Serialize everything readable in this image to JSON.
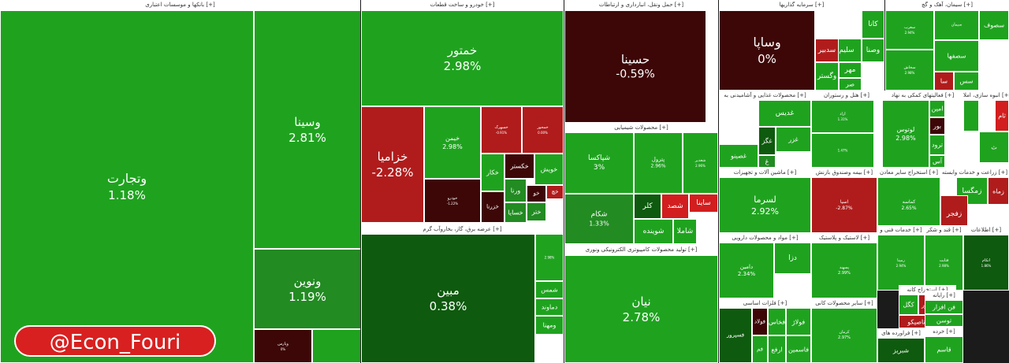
{
  "watermark": "@Econ_Fouri",
  "colors": {
    "up_strong": "#1fa31f",
    "up_mid": "#228b22",
    "up_dark": "#0e5a0e",
    "neutral_dark": "#3d0707",
    "down_mid": "#b01c1c",
    "down_strong": "#d21e1e",
    "background": "#ffffff"
  },
  "chart_data": {
    "type": "heatmap",
    "title": "",
    "sectors": [
      {
        "header": "بانکها و موسسات اعتباری [+]",
        "tiles": [
          {
            "name": "وتجارت",
            "value": "1.18%"
          },
          {
            "name": "وسینا",
            "value": "2.81%"
          },
          {
            "name": "ونوین",
            "value": "1.19%"
          },
          {
            "name": "وپارس",
            "value": "0%"
          },
          {
            "name": "",
            "value": ""
          }
        ]
      },
      {
        "header": "خودرو و ساخت قطعات [+]",
        "tiles": [
          {
            "name": "خمتور",
            "value": "2.98%"
          },
          {
            "name": "خزامیا",
            "value": "-2.28%"
          },
          {
            "name": "خیمن",
            "value": "2.98%"
          },
          {
            "name": "خسهرک",
            "value": "-0.91%"
          },
          {
            "name": "خمحور",
            "value": "0.00%"
          },
          {
            "name": "خودرو",
            "value": "-1.22%"
          },
          {
            "name": "خکار",
            "value": ""
          },
          {
            "name": "خکستر",
            "value": ""
          },
          {
            "name": "خویش",
            "value": ""
          },
          {
            "name": "خزرنا",
            "value": ""
          },
          {
            "name": "ورنا",
            "value": ""
          },
          {
            "name": "خو",
            "value": ""
          },
          {
            "name": "خچ",
            "value": ""
          },
          {
            "name": "ختر",
            "value": ""
          },
          {
            "name": "خسایا",
            "value": ""
          }
        ]
      },
      {
        "header": "عرضه برق، گاز، بخاروآب گرم [+]",
        "tiles": [
          {
            "name": "مبین",
            "value": "0.38%"
          },
          {
            "name": "",
            "value": "2.98%"
          },
          {
            "name": "شمس",
            "value": ""
          },
          {
            "name": "دماوند",
            "value": ""
          },
          {
            "name": "ومهنا",
            "value": ""
          }
        ]
      },
      {
        "header": "حمل ونقل، انبارداری و ارتباطات [+]",
        "tiles": [
          {
            "name": "حسینا",
            "value": "-0.59%"
          }
        ]
      },
      {
        "header": "محصولات شیمیایی [+]",
        "tiles": [
          {
            "name": "شپاکسا",
            "value": "3%"
          },
          {
            "name": "شکام",
            "value": "1.33%"
          },
          {
            "name": "پترول",
            "value": "2.96%"
          },
          {
            "name": "شغدیر",
            "value": "2.96%"
          },
          {
            "name": "کلر",
            "value": ""
          },
          {
            "name": "شصد",
            "value": ""
          },
          {
            "name": "شوینده",
            "value": ""
          },
          {
            "name": "شاملا",
            "value": ""
          },
          {
            "name": "ساینا",
            "value": ""
          }
        ]
      },
      {
        "header": "تولید محصولات کامپیوتری الکترونیکی ونوری [+]",
        "tiles": [
          {
            "name": "نیان",
            "value": "2.78%"
          }
        ]
      },
      {
        "header": "سرمایه گذاریها [+]",
        "tiles": [
          {
            "name": "وساپا",
            "value": "0%"
          },
          {
            "name": "کانا",
            "value": ""
          },
          {
            "name": "وصنا",
            "value": ""
          },
          {
            "name": "سلیم",
            "value": ""
          },
          {
            "name": "سدبیر",
            "value": ""
          },
          {
            "name": "مهر",
            "value": ""
          },
          {
            "name": "وگستر",
            "value": ""
          },
          {
            "name": "صر",
            "value": ""
          }
        ]
      },
      {
        "header": "سیمان، آهک و گچ [+]",
        "tiles": [
          {
            "name": "سغرب",
            "value": "2.94%"
          },
          {
            "name": "سیمان",
            "value": ""
          },
          {
            "name": "سصفها",
            "value": ""
          },
          {
            "name": "سخاش",
            "value": "2.98%"
          },
          {
            "name": "سا",
            "value": ""
          },
          {
            "name": "سس",
            "value": ""
          },
          {
            "name": "سصوف",
            "value": ""
          }
        ]
      },
      {
        "header": "محصولات غذایی و آشامیدنی به [+]",
        "tiles": [
          {
            "name": "غدیس",
            "value": ""
          },
          {
            "name": "غان",
            "value": ""
          },
          {
            "name": "غصینو",
            "value": ""
          },
          {
            "name": "غزر",
            "value": ""
          },
          {
            "name": "غگز",
            "value": ""
          },
          {
            "name": "غ",
            "value": ""
          }
        ]
      },
      {
        "header": "هتل و رستوران [+]",
        "tiles": [
          {
            "name": "اراد",
            "value": "1.31%"
          },
          {
            "name": "",
            "value": "1.47%"
          }
        ]
      },
      {
        "header": "فعالیتهای کمکی به نهاد [+]",
        "tiles": [
          {
            "name": "لوتوس",
            "value": "2.98%"
          },
          {
            "name": "امین",
            "value": ""
          },
          {
            "name": "بور",
            "value": ""
          },
          {
            "name": "ترود",
            "value": ""
          },
          {
            "name": "آس",
            "value": ""
          }
        ]
      },
      {
        "header": "انبوه سازی، املا [+]",
        "tiles": [
          {
            "name": "ثام",
            "value": ""
          },
          {
            "name": "ث",
            "value": ""
          },
          {
            "name": "",
            "value": ""
          }
        ]
      },
      {
        "header": "ماشین آلات و تجهیزات [+]",
        "tiles": [
          {
            "name": "لسرما",
            "value": "2.92%"
          }
        ]
      },
      {
        "header": "بیمه وصندوق بازنش [+]",
        "tiles": [
          {
            "name": "آسیا",
            "value": "-2.87%"
          }
        ]
      },
      {
        "header": "استخراج سایر معادن [+]",
        "tiles": [
          {
            "name": "کماسه",
            "value": "2.65%"
          }
        ]
      },
      {
        "header": "زراعت و خدمات وابسته [+]",
        "tiles": [
          {
            "name": "زمگسا",
            "value": ""
          },
          {
            "name": "زماه",
            "value": ""
          },
          {
            "name": "زفجر",
            "value": ""
          }
        ]
      },
      {
        "header": "مواد و محصولات دارویی [+]",
        "tiles": [
          {
            "name": "دامین",
            "value": "2.34%"
          },
          {
            "name": "دزا",
            "value": ""
          }
        ]
      },
      {
        "header": "لاستیک و پلاستیک [+]",
        "tiles": [
          {
            "name": "پسهند",
            "value": "2.99%"
          }
        ]
      },
      {
        "header": "فلزات اساسی [+]",
        "tiles": [
          {
            "name": "فسپرور",
            "value": ""
          },
          {
            "name": "فولاد",
            "value": ""
          },
          {
            "name": "فخاس",
            "value": ""
          },
          {
            "name": "فولاژ",
            "value": ""
          },
          {
            "name": "فم",
            "value": ""
          },
          {
            "name": "ارفع",
            "value": ""
          },
          {
            "name": "فاسمین",
            "value": ""
          },
          {
            "name": "کاوه",
            "value": ""
          }
        ]
      },
      {
        "header": "سایر محصولات کانی [+]",
        "tiles": [
          {
            "name": "کرمان",
            "value": "2.97%"
          }
        ]
      },
      {
        "header": "اطلاعات [+]",
        "tiles": [
          {
            "name": "اتکام",
            "value": "1.86%"
          }
        ]
      },
      {
        "header": "خدمات فنی و [+]",
        "tiles": [
          {
            "name": "رمپنا",
            "value": "2.94%"
          }
        ]
      },
      {
        "header": "قند و شکر [+]",
        "tiles": [
          {
            "name": "قثابت",
            "value": "2.98%"
          }
        ]
      },
      {
        "header": "استخراج کانه [+]",
        "tiles": [
          {
            "name": "کگل",
            "value": ""
          },
          {
            "name": "فزر",
            "value": ""
          },
          {
            "name": "تاصیکو",
            "value": ""
          }
        ]
      },
      {
        "header": "رایانه [+]",
        "tiles": [
          {
            "name": "فن افزار",
            "value": ""
          },
          {
            "name": "توسن",
            "value": ""
          }
        ]
      },
      {
        "header": "فراورده های [+]",
        "tiles": [
          {
            "name": "شبریز",
            "value": ""
          }
        ]
      },
      {
        "header": "خرده [+]",
        "tiles": [
          {
            "name": "قاسم",
            "value": ""
          }
        ]
      }
    ]
  }
}
